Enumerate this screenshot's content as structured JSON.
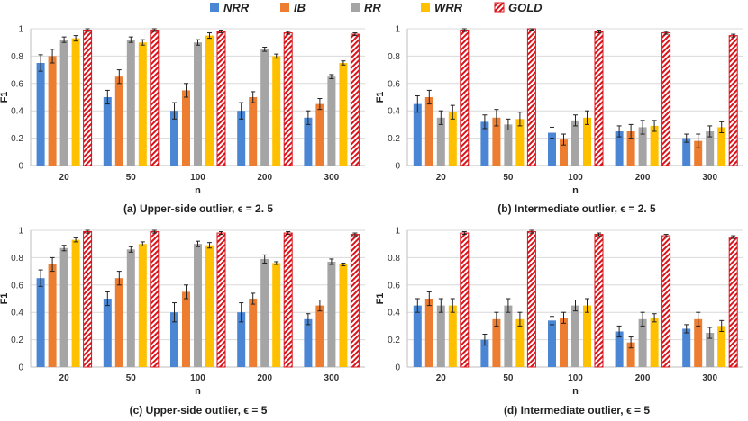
{
  "legend": [
    {
      "name": "NRR",
      "color": "#4a86d4"
    },
    {
      "name": "IB",
      "color": "#ed7d31"
    },
    {
      "name": "RR",
      "color": "#a5a5a5"
    },
    {
      "name": "WRR",
      "color": "#ffc000"
    },
    {
      "name": "GOLD",
      "color": "#d9141b",
      "pattern": "hatch"
    }
  ],
  "chart_data": [
    {
      "type": "bar",
      "caption": "(a) Upper-side outlier,  ϵ = 2. 5",
      "xlabel": "n",
      "ylabel": "F1",
      "categories": [
        "20",
        "50",
        "100",
        "200",
        "300"
      ],
      "yticks": [
        "0",
        "0.2",
        "0.4",
        "0.6",
        "0.8",
        "1"
      ],
      "ylim": [
        0,
        1
      ],
      "series": [
        {
          "name": "NRR",
          "values": [
            0.75,
            0.5,
            0.4,
            0.4,
            0.35
          ],
          "err": [
            0.06,
            0.05,
            0.06,
            0.06,
            0.05
          ]
        },
        {
          "name": "IB",
          "values": [
            0.8,
            0.65,
            0.55,
            0.5,
            0.45
          ],
          "err": [
            0.05,
            0.05,
            0.05,
            0.04,
            0.04
          ]
        },
        {
          "name": "RR",
          "values": [
            0.92,
            0.92,
            0.9,
            0.85,
            0.65
          ],
          "err": [
            0.02,
            0.02,
            0.02,
            0.015,
            0.015
          ]
        },
        {
          "name": "WRR",
          "values": [
            0.93,
            0.9,
            0.95,
            0.8,
            0.75
          ],
          "err": [
            0.02,
            0.02,
            0.02,
            0.015,
            0.015
          ]
        },
        {
          "name": "GOLD",
          "values": [
            0.99,
            0.99,
            0.98,
            0.97,
            0.96
          ],
          "err": [
            0.01,
            0.01,
            0.01,
            0.01,
            0.01
          ]
        }
      ]
    },
    {
      "type": "bar",
      "caption": "(b) Intermediate outlier,  ϵ = 2. 5",
      "xlabel": "n",
      "ylabel": "F1",
      "categories": [
        "20",
        "50",
        "100",
        "200",
        "300"
      ],
      "yticks": [
        "0",
        "0.2",
        "0.4",
        "0.6",
        "0.8",
        "1"
      ],
      "ylim": [
        0,
        1
      ],
      "series": [
        {
          "name": "NRR",
          "values": [
            0.45,
            0.32,
            0.24,
            0.25,
            0.2
          ],
          "err": [
            0.06,
            0.05,
            0.04,
            0.04,
            0.03
          ]
        },
        {
          "name": "IB",
          "values": [
            0.5,
            0.35,
            0.19,
            0.25,
            0.18
          ],
          "err": [
            0.05,
            0.06,
            0.04,
            0.05,
            0.05
          ]
        },
        {
          "name": "RR",
          "values": [
            0.35,
            0.3,
            0.33,
            0.28,
            0.25
          ],
          "err": [
            0.05,
            0.04,
            0.04,
            0.05,
            0.04
          ]
        },
        {
          "name": "WRR",
          "values": [
            0.39,
            0.34,
            0.35,
            0.29,
            0.28
          ],
          "err": [
            0.05,
            0.05,
            0.05,
            0.04,
            0.04
          ]
        },
        {
          "name": "GOLD",
          "values": [
            0.99,
            1.0,
            0.98,
            0.97,
            0.95
          ],
          "err": [
            0.01,
            0.01,
            0.01,
            0.01,
            0.01
          ]
        }
      ]
    },
    {
      "type": "bar",
      "caption": "(c) Upper-side outlier,  ϵ = 5",
      "xlabel": "n",
      "ylabel": "F1",
      "categories": [
        "20",
        "50",
        "100",
        "200",
        "300"
      ],
      "yticks": [
        "0",
        "0.2",
        "0.4",
        "0.6",
        "0.8",
        "1"
      ],
      "ylim": [
        0,
        1
      ],
      "series": [
        {
          "name": "NRR",
          "values": [
            0.65,
            0.5,
            0.4,
            0.4,
            0.35
          ],
          "err": [
            0.06,
            0.05,
            0.07,
            0.07,
            0.04
          ]
        },
        {
          "name": "IB",
          "values": [
            0.75,
            0.65,
            0.55,
            0.5,
            0.45
          ],
          "err": [
            0.05,
            0.05,
            0.05,
            0.04,
            0.04
          ]
        },
        {
          "name": "RR",
          "values": [
            0.87,
            0.86,
            0.9,
            0.79,
            0.77
          ],
          "err": [
            0.02,
            0.02,
            0.02,
            0.03,
            0.02
          ]
        },
        {
          "name": "WRR",
          "values": [
            0.93,
            0.9,
            0.89,
            0.76,
            0.75
          ],
          "err": [
            0.015,
            0.015,
            0.02,
            0.01,
            0.01
          ]
        },
        {
          "name": "GOLD",
          "values": [
            0.99,
            0.99,
            0.98,
            0.98,
            0.97
          ],
          "err": [
            0.01,
            0.01,
            0.01,
            0.01,
            0.01
          ]
        }
      ]
    },
    {
      "type": "bar",
      "caption": "(d) Intermediate outlier,  ϵ = 5",
      "xlabel": "n",
      "ylabel": "F1",
      "categories": [
        "20",
        "50",
        "100",
        "200",
        "300"
      ],
      "yticks": [
        "0",
        "0.2",
        "0.4",
        "0.6",
        "0.8",
        "1"
      ],
      "ylim": [
        0,
        1
      ],
      "series": [
        {
          "name": "NRR",
          "values": [
            0.45,
            0.2,
            0.34,
            0.26,
            0.28
          ],
          "err": [
            0.05,
            0.04,
            0.03,
            0.04,
            0.03
          ]
        },
        {
          "name": "IB",
          "values": [
            0.5,
            0.35,
            0.36,
            0.18,
            0.35
          ],
          "err": [
            0.05,
            0.05,
            0.04,
            0.04,
            0.05
          ]
        },
        {
          "name": "RR",
          "values": [
            0.45,
            0.45,
            0.45,
            0.35,
            0.25
          ],
          "err": [
            0.05,
            0.05,
            0.04,
            0.05,
            0.04
          ]
        },
        {
          "name": "WRR",
          "values": [
            0.45,
            0.35,
            0.45,
            0.36,
            0.3
          ],
          "err": [
            0.05,
            0.05,
            0.05,
            0.03,
            0.04
          ]
        },
        {
          "name": "GOLD",
          "values": [
            0.98,
            0.99,
            0.97,
            0.96,
            0.95
          ],
          "err": [
            0.01,
            0.01,
            0.01,
            0.01,
            0.01
          ]
        }
      ]
    }
  ]
}
